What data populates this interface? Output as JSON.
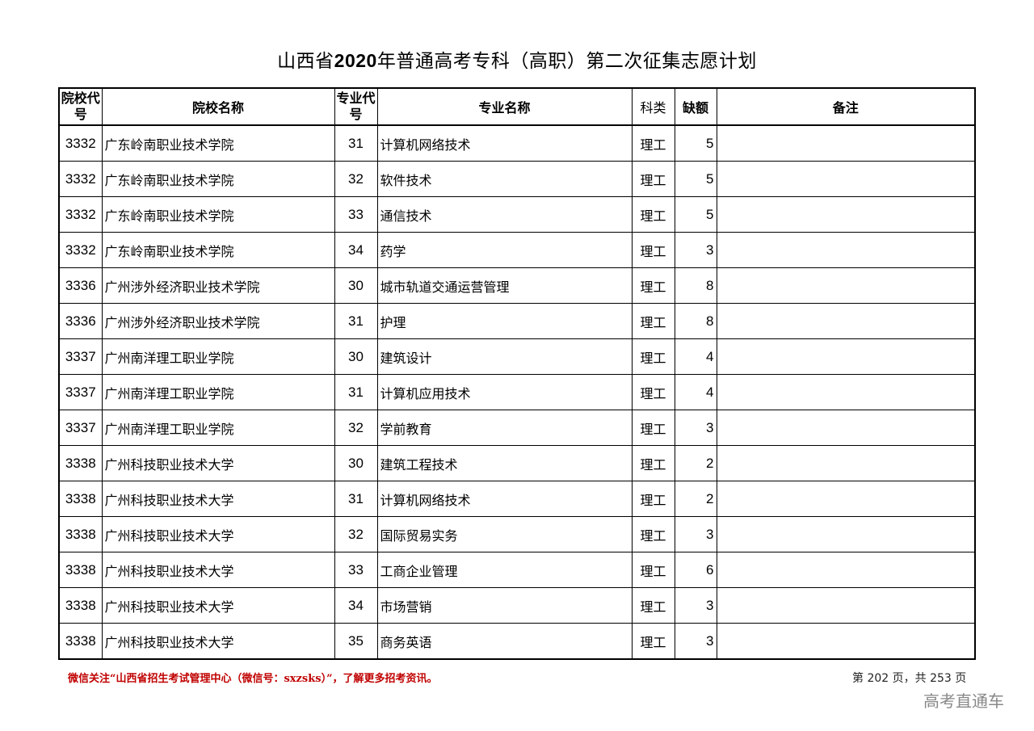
{
  "title": {
    "prefix": "山西省",
    "year": "2020",
    "suffix": "年普通高考专科（高职）第二次征集志愿计划"
  },
  "table": {
    "headers": {
      "school_code": "院校代号",
      "school_name": "院校名称",
      "major_code": "专业代号",
      "major_name": "专业名称",
      "category": "科类",
      "vacancies": "缺额",
      "remarks": "备注"
    },
    "rows": [
      {
        "school_code": "3332",
        "school_name": "广东岭南职业技术学院",
        "major_code": "31",
        "major_name": "计算机网络技术",
        "category": "理工",
        "vacancies": "5",
        "remarks": ""
      },
      {
        "school_code": "3332",
        "school_name": "广东岭南职业技术学院",
        "major_code": "32",
        "major_name": "软件技术",
        "category": "理工",
        "vacancies": "5",
        "remarks": ""
      },
      {
        "school_code": "3332",
        "school_name": "广东岭南职业技术学院",
        "major_code": "33",
        "major_name": "通信技术",
        "category": "理工",
        "vacancies": "5",
        "remarks": ""
      },
      {
        "school_code": "3332",
        "school_name": "广东岭南职业技术学院",
        "major_code": "34",
        "major_name": "药学",
        "category": "理工",
        "vacancies": "3",
        "remarks": ""
      },
      {
        "school_code": "3336",
        "school_name": "广州涉外经济职业技术学院",
        "major_code": "30",
        "major_name": "城市轨道交通运营管理",
        "category": "理工",
        "vacancies": "8",
        "remarks": ""
      },
      {
        "school_code": "3336",
        "school_name": "广州涉外经济职业技术学院",
        "major_code": "31",
        "major_name": "护理",
        "category": "理工",
        "vacancies": "8",
        "remarks": ""
      },
      {
        "school_code": "3337",
        "school_name": "广州南洋理工职业学院",
        "major_code": "30",
        "major_name": "建筑设计",
        "category": "理工",
        "vacancies": "4",
        "remarks": ""
      },
      {
        "school_code": "3337",
        "school_name": "广州南洋理工职业学院",
        "major_code": "31",
        "major_name": "计算机应用技术",
        "category": "理工",
        "vacancies": "4",
        "remarks": ""
      },
      {
        "school_code": "3337",
        "school_name": "广州南洋理工职业学院",
        "major_code": "32",
        "major_name": "学前教育",
        "category": "理工",
        "vacancies": "3",
        "remarks": ""
      },
      {
        "school_code": "3338",
        "school_name": "广州科技职业技术大学",
        "major_code": "30",
        "major_name": "建筑工程技术",
        "category": "理工",
        "vacancies": "2",
        "remarks": ""
      },
      {
        "school_code": "3338",
        "school_name": "广州科技职业技术大学",
        "major_code": "31",
        "major_name": "计算机网络技术",
        "category": "理工",
        "vacancies": "2",
        "remarks": ""
      },
      {
        "school_code": "3338",
        "school_name": "广州科技职业技术大学",
        "major_code": "32",
        "major_name": "国际贸易实务",
        "category": "理工",
        "vacancies": "3",
        "remarks": ""
      },
      {
        "school_code": "3338",
        "school_name": "广州科技职业技术大学",
        "major_code": "33",
        "major_name": "工商企业管理",
        "category": "理工",
        "vacancies": "6",
        "remarks": ""
      },
      {
        "school_code": "3338",
        "school_name": "广州科技职业技术大学",
        "major_code": "34",
        "major_name": "市场营销",
        "category": "理工",
        "vacancies": "3",
        "remarks": ""
      },
      {
        "school_code": "3338",
        "school_name": "广州科技职业技术大学",
        "major_code": "35",
        "major_name": "商务英语",
        "category": "理工",
        "vacancies": "3",
        "remarks": ""
      }
    ]
  },
  "footer": {
    "note": "微信关注“山西省招生考试管理中心（微信号：sxzsks）”，了解更多招考资讯。",
    "page_info": "第 202 页，共 253 页",
    "watermark": "高考直通车",
    "note_color": "#c00000"
  }
}
